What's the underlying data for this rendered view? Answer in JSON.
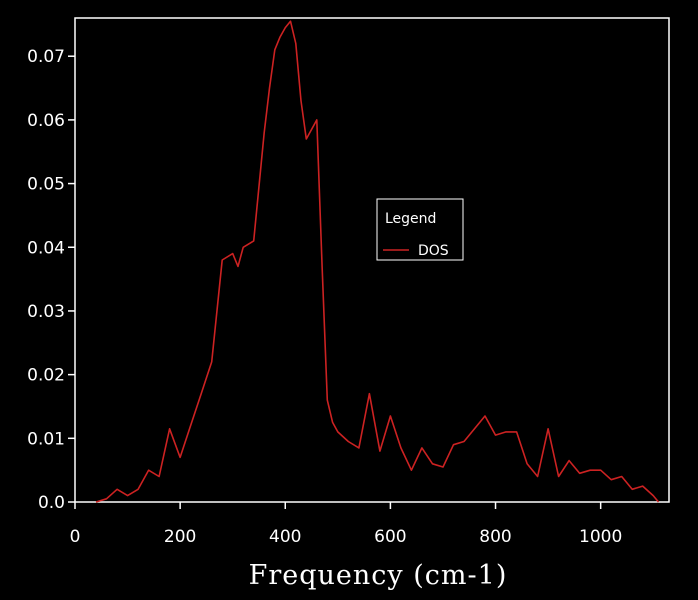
{
  "chart_data": {
    "type": "line",
    "xlabel": "Frequency (cm-1)",
    "ylabel": "",
    "xlim": [
      0,
      1130
    ],
    "ylim": [
      0,
      0.076
    ],
    "xticks": [
      0,
      200,
      400,
      600,
      800,
      1000
    ],
    "xtick_labels": [
      "0",
      "200",
      "400",
      "600",
      "800",
      "1000"
    ],
    "yticks": [
      0,
      0.01,
      0.02,
      0.03,
      0.04,
      0.05,
      0.06,
      0.07
    ],
    "ytick_labels": [
      "0.0",
      "0.01",
      "0.02",
      "0.03",
      "0.04",
      "0.05",
      "0.06",
      "0.07"
    ],
    "grid": false,
    "legend": {
      "title": "Legend",
      "position": "center-right"
    },
    "colors": {
      "background": "#000000",
      "axes": "#ffffff",
      "series": "#cc2222"
    },
    "series": [
      {
        "name": "DOS",
        "x": [
          40,
          60,
          80,
          100,
          120,
          140,
          160,
          180,
          200,
          220,
          240,
          260,
          280,
          300,
          310,
          320,
          340,
          360,
          370,
          380,
          390,
          400,
          410,
          420,
          430,
          440,
          460,
          470,
          480,
          490,
          500,
          520,
          540,
          560,
          580,
          600,
          620,
          640,
          660,
          680,
          700,
          720,
          740,
          760,
          780,
          800,
          820,
          840,
          860,
          880,
          900,
          920,
          940,
          960,
          980,
          1000,
          1020,
          1040,
          1060,
          1080,
          1100,
          1110
        ],
        "values": [
          0.0,
          0.0005,
          0.002,
          0.001,
          0.002,
          0.005,
          0.004,
          0.0115,
          0.007,
          0.012,
          0.017,
          0.022,
          0.038,
          0.039,
          0.037,
          0.04,
          0.041,
          0.058,
          0.065,
          0.071,
          0.073,
          0.0745,
          0.0755,
          0.072,
          0.063,
          0.057,
          0.06,
          0.037,
          0.016,
          0.0125,
          0.011,
          0.0095,
          0.0085,
          0.017,
          0.008,
          0.0135,
          0.0085,
          0.005,
          0.0085,
          0.006,
          0.0055,
          0.009,
          0.0095,
          0.0115,
          0.0135,
          0.0105,
          0.011,
          0.011,
          0.006,
          0.004,
          0.0115,
          0.004,
          0.0065,
          0.0045,
          0.005,
          0.005,
          0.0035,
          0.004,
          0.002,
          0.0025,
          0.001,
          0.0
        ]
      }
    ]
  }
}
